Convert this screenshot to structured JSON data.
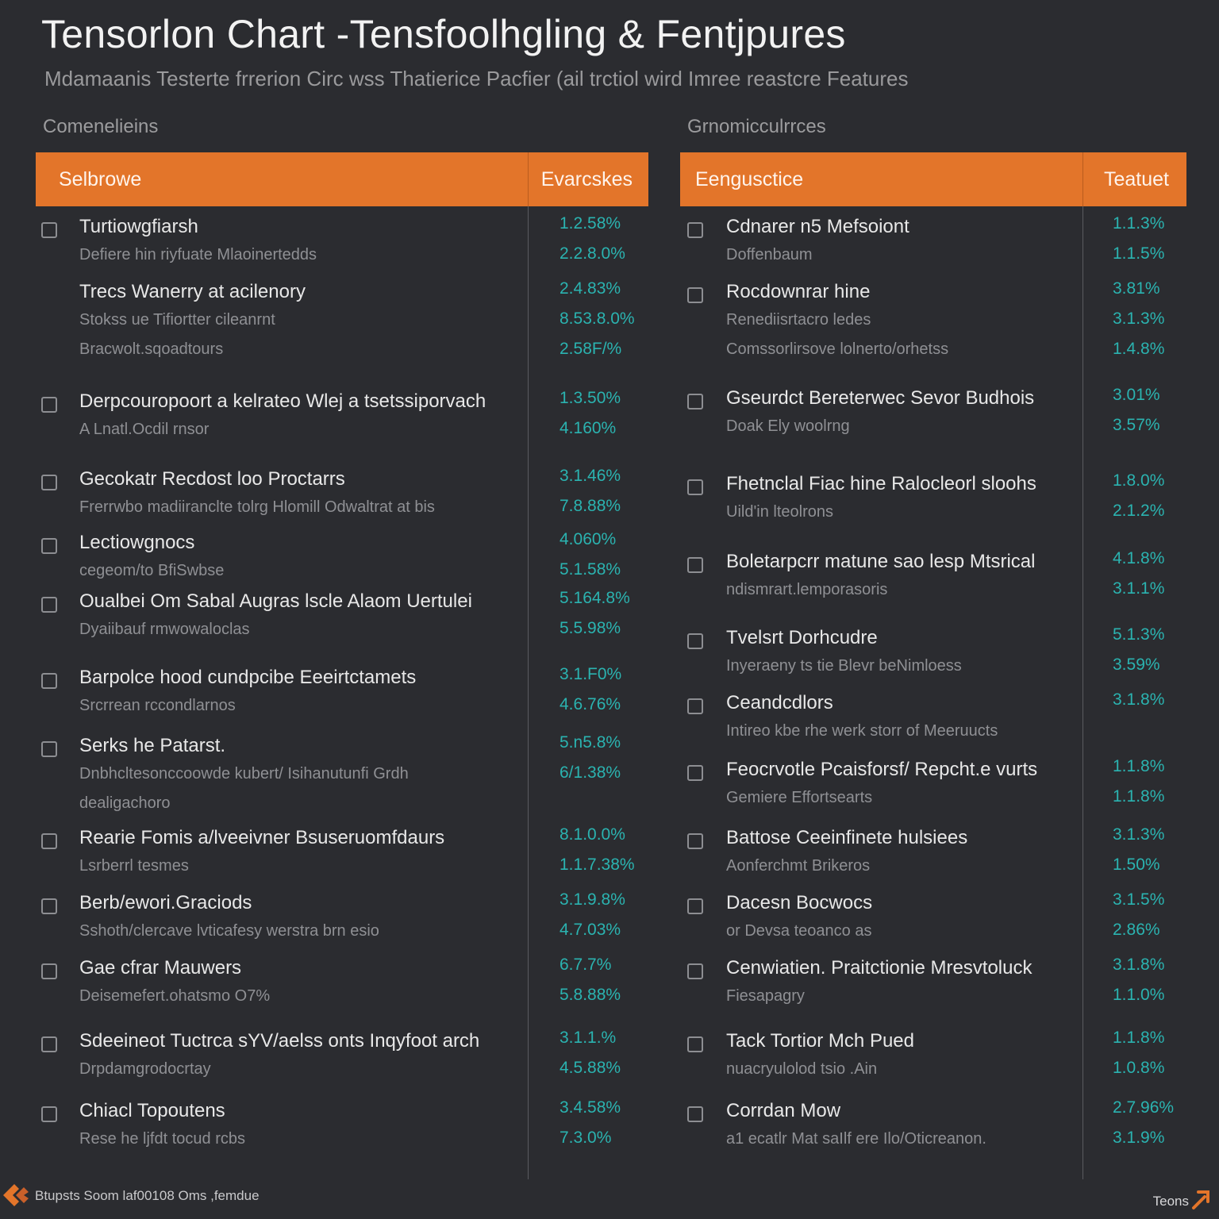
{
  "title": "Tensorlon Chart -Tensfoolhgling & Fentjpures",
  "subtitle": "Mdamaanis Testerte frrerion Circ wss Thatierice Pacfier (ail trctiol wird Imree reastcre Features",
  "colors": {
    "background": "#2b2c30",
    "header": "#e3752a",
    "value": "#2bb3b0",
    "text": "#e8e8e8",
    "muted": "#8f9094"
  },
  "footer": {
    "text": "Btupsts Soom laf00108 Oms ,femdue",
    "brand": "Teons",
    "logo_icon": "orange-chevron-logo-icon"
  },
  "chart_data": [
    {
      "type": "table",
      "section_label": "Comenelieins",
      "columns": [
        "Selbrowe",
        "Evarcskes"
      ],
      "rows": [
        {
          "label": "Turtiowgfiarsh",
          "checkbox": true,
          "lines": [
            "Defiere hin riyfuate Mlaoinertedds"
          ],
          "values": [
            "1.2.58%",
            "2.2.8.0%"
          ]
        },
        {
          "label": "Trecs Wanerry at acilenory",
          "checkbox": false,
          "lines": [
            "Stokss ue Tifiortter cileanrnt",
            "Bracwolt.sqoadtours"
          ],
          "values": [
            "2.4.83%",
            "8.53.8.0%",
            "2.58F/%"
          ]
        },
        {
          "label": "Derpcouropoort a kelrateo Wlej a tsetssiporvach",
          "checkbox": true,
          "lines": [
            "A Lnatl.Ocdil rnsor"
          ],
          "values": [
            "1.3.50%",
            "4.160%"
          ]
        },
        {
          "label": "Gecokatr Recdost loo Proctarrs",
          "checkbox": true,
          "lines": [
            "Frerrwbo madiiranclte tolrg Hlomill Odwaltrat at bis"
          ],
          "values": [
            "3.1.46%",
            "7.8.88%"
          ]
        },
        {
          "label": "Lectiowgnocs",
          "checkbox": true,
          "lines": [
            "cegeom/to BfiSwbse"
          ],
          "values": [
            "4.060%",
            "5.1.58%"
          ]
        },
        {
          "label": "Oualbei Om Sabal Augras lscle Alaom Uertulei",
          "checkbox": true,
          "lines": [
            "Dyaiibauf rmwowaloclas"
          ],
          "values": [
            "5.164.8%",
            "5.5.98%"
          ]
        },
        {
          "label": "Barpolce hood cundpcibe Eeeirtctamets",
          "checkbox": true,
          "lines": [
            "Srcrrean rccondlarnos"
          ],
          "values": [
            "3.1.F0%",
            "4.6.76%"
          ]
        },
        {
          "label": "Serks he Patarst.",
          "checkbox": true,
          "lines": [
            "Dnbhcltesonccoowde kubert/ Isihanutunfi Grdh",
            "dealigachoro"
          ],
          "values": [
            "5.n5.8%",
            "6/1.38%"
          ]
        },
        {
          "label": "Rearie Fomis a/lveeivner Bsuseruomfdaurs",
          "checkbox": true,
          "lines": [
            "Lsrberrl tesmes"
          ],
          "values": [
            "8.1.0.0%",
            "1.1.7.38%"
          ]
        },
        {
          "label": "Berb/ewori.Graciods",
          "checkbox": true,
          "lines": [
            "Sshoth/clercave lvticafesy werstra brn esio"
          ],
          "values": [
            "3.1.9.8%",
            "4.7.03%"
          ]
        },
        {
          "label": "Gae cfrar Mauwers",
          "checkbox": true,
          "lines": [
            "Deisemefert.ohatsmo O7%"
          ],
          "values": [
            "6.7.7%",
            "5.8.88%"
          ]
        },
        {
          "label": "Sdeeineot Tuctrca sYV/aelss onts Inqyfoot arch",
          "checkbox": true,
          "lines": [
            "Drpdamgrodocrtay"
          ],
          "values": [
            "3.1.1.%",
            "4.5.88%"
          ]
        },
        {
          "label": "Chiacl Topoutens",
          "checkbox": true,
          "lines": [
            "Rese he ljfdt tocud rcbs"
          ],
          "values": [
            "3.4.58%",
            "7.3.0%"
          ]
        }
      ]
    },
    {
      "type": "table",
      "section_label": "Grnomicculrrces",
      "columns": [
        "Eengusctice",
        "Teatuet"
      ],
      "rows": [
        {
          "label": "Cdnarer n5 Mefsoiont",
          "checkbox": true,
          "lines": [
            "Doffenbaum"
          ],
          "values": [
            "1.1.3%",
            "1.1.5%"
          ]
        },
        {
          "label": "Rocdownrar hine",
          "checkbox": true,
          "lines": [
            "Renediisrtacro ledes",
            "Comssorlirsove lolnerto/orhetss"
          ],
          "values": [
            "3.81%",
            "3.1.3%",
            "1.4.8%"
          ]
        },
        {
          "label": "Gseurdct Bereterwec Sevor Budhois",
          "checkbox": true,
          "lines": [
            "Doak Ely woolrng"
          ],
          "values": [
            "3.01%",
            "3.57%"
          ]
        },
        {
          "label": "Fhetnclal Fiac hine Ralocleorl sloohs",
          "checkbox": true,
          "lines": [
            "Uild'in lteolrons"
          ],
          "values": [
            "1.8.0%",
            "2.1.2%"
          ]
        },
        {
          "label": "Boletarpcrr matune sao lesp Mtsrical",
          "checkbox": true,
          "lines": [
            "ndismrart.lemporasoris"
          ],
          "values": [
            "4.1.8%",
            "3.1.1%"
          ]
        },
        {
          "label": "Tvelsrt Dorhcudre",
          "checkbox": true,
          "lines": [
            "Inyeraeny ts tie Blevr beNimloess"
          ],
          "values": [
            "5.1.3%",
            "3.59%"
          ]
        },
        {
          "label": "Ceandcdlors",
          "checkbox": true,
          "lines": [
            "Intireo kbe rhe werk storr of Meeruucts"
          ],
          "values": [
            "3.1.8%"
          ]
        },
        {
          "label": "Feocrvotle Pcaisforsf/ Repcht.e vurts",
          "checkbox": true,
          "lines": [
            "Gemiere Effortsearts"
          ],
          "values": [
            "1.1.8%",
            "1.1.8%"
          ]
        },
        {
          "label": "Battose Ceeinfinete hulsiees",
          "checkbox": true,
          "lines": [
            "Aonferchmt Brikeros"
          ],
          "values": [
            "3.1.3%",
            "1.50%"
          ]
        },
        {
          "label": "Dacesn Bocwocs",
          "checkbox": true,
          "lines": [
            "or Devsa teoanco as"
          ],
          "values": [
            "3.1.5%",
            "2.86%"
          ]
        },
        {
          "label": "Cenwiatien. Praitctionie Mresvtoluck",
          "checkbox": true,
          "lines": [
            "Fiesapagry"
          ],
          "values": [
            "3.1.8%",
            "1.1.0%"
          ]
        },
        {
          "label": "Tack Tortior Mch Pued",
          "checkbox": true,
          "lines": [
            "nuacryulolod tsio .Ain"
          ],
          "values": [
            "1.1.8%",
            "1.0.8%"
          ]
        },
        {
          "label": "Corrdan Mow",
          "checkbox": true,
          "lines": [
            "a1 ecatlr Mat saIlf ere Ilo/Oticreanon."
          ],
          "values": [
            "2.7.96%",
            "3.1.9%"
          ]
        }
      ]
    }
  ]
}
